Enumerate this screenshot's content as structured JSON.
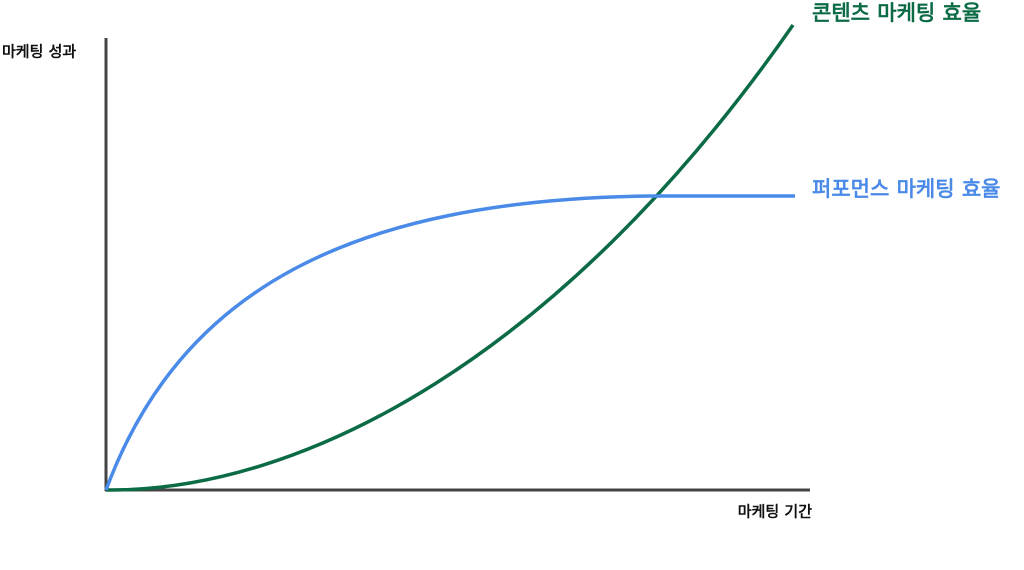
{
  "axes": {
    "y_label": "마케팅 성과",
    "x_label": "마케팅 기간"
  },
  "curves": [
    {
      "label": "콘텐츠 마케팅 효율"
    },
    {
      "label": "퍼포먼스 마케팅 효율"
    }
  ]
}
